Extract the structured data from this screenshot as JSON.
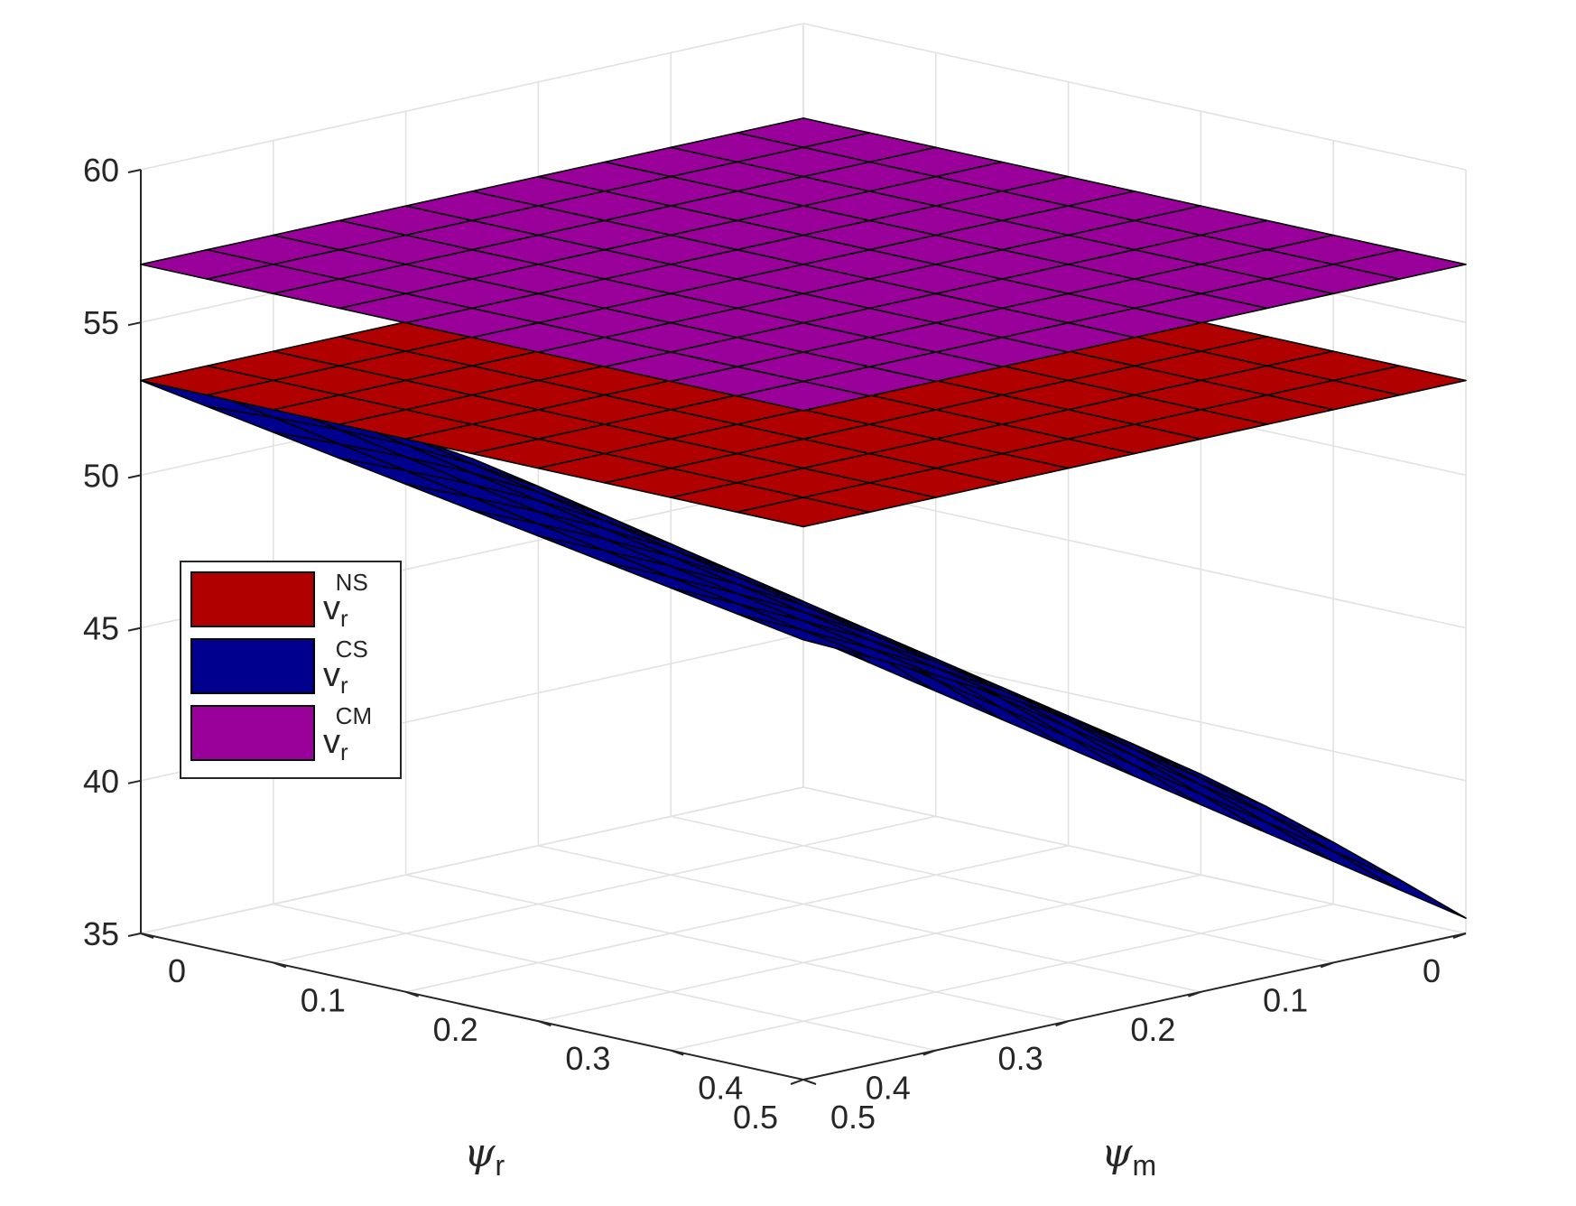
{
  "chart_data": {
    "type": "surface",
    "title": "",
    "xlabel": {
      "symbol": "ψ",
      "subscript": "m"
    },
    "ylabel": {
      "symbol": "ψ",
      "subscript": "r"
    },
    "zlabel": "",
    "xlim": [
      0,
      0.5
    ],
    "ylim": [
      0,
      0.5
    ],
    "zlim": [
      35,
      60
    ],
    "x_ticks": [
      "0",
      "0.1",
      "0.2",
      "0.3",
      "0.4",
      "0.5"
    ],
    "y_ticks": [
      "0",
      "0.1",
      "0.2",
      "0.3",
      "0.4",
      "0.5"
    ],
    "z_ticks": [
      "35",
      "40",
      "45",
      "50",
      "55",
      "60"
    ],
    "grid": true,
    "grid_resolution": 11,
    "legend_position": "left",
    "series": [
      {
        "key": "ns",
        "name": {
          "base": "v",
          "sub": "r",
          "sup": "NS"
        },
        "color": "#b00000",
        "surface": "constant",
        "corner_values": {
          "x0_y0": 53.1,
          "x1_y0": 53.1,
          "x0_y1": 53.1,
          "x1_y1": 53.1
        }
      },
      {
        "key": "cs",
        "name": {
          "base": "v",
          "sub": "r",
          "sup": "CS"
        },
        "color": "#00008f",
        "surface": "bilinear-curved",
        "corner_values": {
          "x0_y0": 40.0,
          "x1_y0": 35.5,
          "x0_y1": 53.1,
          "x1_y1": 49.4
        }
      },
      {
        "key": "cm",
        "name": {
          "base": "v",
          "sub": "r",
          "sup": "CM"
        },
        "color": "#9a009a",
        "surface": "constant",
        "corner_values": {
          "x0_y0": 56.9,
          "x1_y0": 56.9,
          "x0_y1": 56.9,
          "x1_y1": 56.9
        }
      }
    ]
  }
}
